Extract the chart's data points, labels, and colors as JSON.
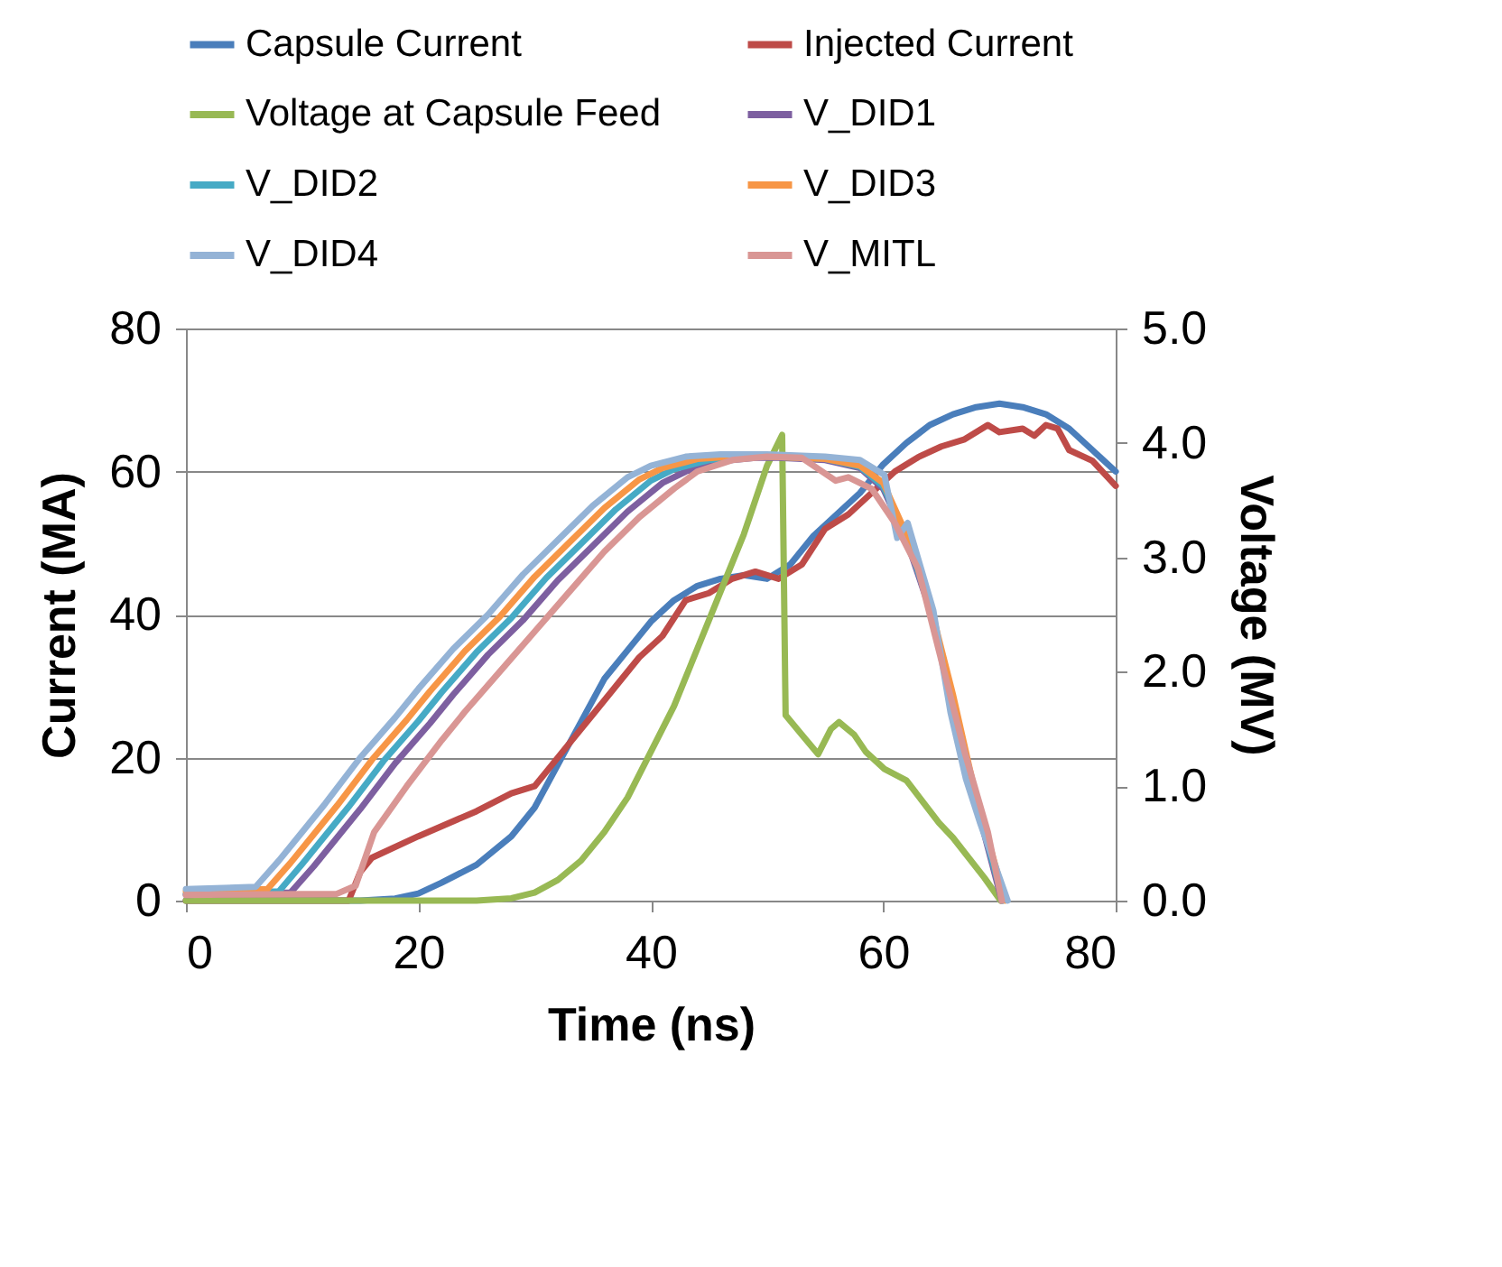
{
  "chart_data": {
    "type": "line",
    "xlabel": "Time (ns)",
    "ylabel": "Current (MA)",
    "y2label": "Voltage (MV)",
    "xlim": [
      0,
      80
    ],
    "xticks": [
      0,
      20,
      40,
      60,
      80
    ],
    "ylim": [
      0,
      80
    ],
    "yticks": [
      0,
      20,
      40,
      60,
      80
    ],
    "y2lim": [
      0,
      5
    ],
    "y2ticks": [
      {
        "value": 0,
        "label": "0.0"
      },
      {
        "value": 1,
        "label": "1.0"
      },
      {
        "value": 2,
        "label": "2.0"
      },
      {
        "value": 3,
        "label": "3.0"
      },
      {
        "value": 4,
        "label": "4.0"
      },
      {
        "value": 5,
        "label": "5.0"
      }
    ],
    "grid": "y",
    "legend": "top",
    "line_style": "solid",
    "marker": "none",
    "series": [
      {
        "name": "Capsule Current",
        "color": "#4a7ebb",
        "x": [
          0,
          15,
          18,
          20,
          22,
          25,
          28,
          30,
          32,
          34,
          36,
          38,
          40,
          42,
          44,
          46,
          48,
          50,
          52,
          54,
          56,
          58,
          60,
          62,
          64,
          66,
          68,
          70,
          72,
          74,
          76,
          78,
          80
        ],
        "values": [
          0,
          0,
          0.3,
          1,
          2.5,
          5,
          9,
          13,
          19,
          25,
          31,
          35,
          39,
          42,
          44,
          45,
          45.5,
          45,
          47,
          51,
          54,
          57,
          61,
          64,
          66.5,
          68,
          69,
          69.5,
          69,
          68,
          66,
          63,
          60
        ]
      },
      {
        "name": "Injected Current",
        "color": "#be4b48",
        "x": [
          0,
          14,
          15,
          16,
          20,
          25,
          28,
          30,
          31,
          33,
          35,
          37,
          39,
          41,
          43,
          45,
          47,
          49,
          51,
          53,
          55,
          57,
          59,
          61,
          63,
          65,
          67,
          69,
          70,
          72,
          73,
          74,
          75,
          76,
          78,
          80
        ],
        "values": [
          0,
          0,
          4,
          6,
          9,
          12.5,
          15,
          16,
          18,
          22,
          26,
          30,
          34,
          37,
          42,
          43,
          45,
          46,
          45,
          47,
          52,
          54,
          57,
          60,
          62,
          63.5,
          64.5,
          66.5,
          65.5,
          66,
          65,
          66.5,
          66,
          63,
          61.5,
          58
        ]
      },
      {
        "name": "Voltage at Capsule Feed",
        "color": "#98b954",
        "axis": "y2",
        "x": [
          0,
          25,
          28,
          30,
          32,
          34,
          36,
          38,
          40,
          42,
          44,
          46,
          48,
          50,
          51.3,
          51.6,
          53,
          54.4,
          55.5,
          56.2,
          57.5,
          58.5,
          60.1,
          62,
          64.8,
          66,
          68.7,
          70.1
        ],
        "values": [
          0,
          0,
          0.02,
          0.07,
          0.18,
          0.35,
          0.6,
          0.9,
          1.3,
          1.7,
          2.2,
          2.7,
          3.2,
          3.8,
          4.07,
          1.62,
          1.45,
          1.28,
          1.5,
          1.56,
          1.45,
          1.3,
          1.15,
          1.05,
          0.68,
          0.55,
          0.2,
          0
        ]
      },
      {
        "name": "V_DID1",
        "color": "#7d5fa0",
        "axis": "y2",
        "x": [
          0,
          9,
          11,
          13,
          15,
          18,
          21,
          23,
          26,
          29,
          32,
          35,
          38,
          41,
          43,
          46,
          49,
          51,
          55,
          58,
          60,
          62,
          64,
          66,
          68,
          70.2
        ],
        "values": [
          0.05,
          0.07,
          0.3,
          0.55,
          0.8,
          1.2,
          1.55,
          1.8,
          2.15,
          2.45,
          2.8,
          3.1,
          3.4,
          3.65,
          3.75,
          3.84,
          3.87,
          3.87,
          3.85,
          3.78,
          3.6,
          3.15,
          2.55,
          1.75,
          0.85,
          0
        ]
      },
      {
        "name": "V_DID2",
        "color": "#46aac5",
        "axis": "y2",
        "x": [
          0,
          8,
          10,
          12,
          14,
          17,
          20,
          22,
          25,
          28,
          31,
          34,
          37,
          40,
          42,
          45,
          48,
          50,
          55,
          58,
          60,
          62,
          64,
          66,
          68,
          70.3
        ],
        "values": [
          0.06,
          0.08,
          0.32,
          0.57,
          0.82,
          1.22,
          1.57,
          1.82,
          2.17,
          2.47,
          2.82,
          3.12,
          3.42,
          3.67,
          3.77,
          3.85,
          3.88,
          3.88,
          3.86,
          3.79,
          3.62,
          3.18,
          2.57,
          1.77,
          0.87,
          0
        ]
      },
      {
        "name": "V_DID3",
        "color": "#f79646",
        "axis": "y2",
        "x": [
          0,
          7,
          9,
          11,
          13,
          16,
          19,
          21,
          24,
          27,
          30,
          33,
          36,
          39,
          41,
          44,
          47,
          50,
          55,
          58,
          60,
          62,
          64,
          66,
          68,
          70.5
        ],
        "values": [
          0.08,
          0.1,
          0.33,
          0.58,
          0.83,
          1.23,
          1.58,
          1.83,
          2.18,
          2.48,
          2.83,
          3.13,
          3.43,
          3.68,
          3.78,
          3.86,
          3.88,
          3.88,
          3.86,
          3.8,
          3.65,
          3.2,
          2.6,
          1.8,
          0.9,
          0
        ]
      },
      {
        "name": "V_DID4",
        "color": "#94b3d6",
        "axis": "y2",
        "x": [
          0,
          6,
          8,
          10,
          12,
          15,
          18,
          20,
          23,
          26,
          29,
          32,
          35,
          38,
          40,
          43,
          46,
          50,
          55,
          58,
          60.1,
          61.2,
          62.1,
          64.3,
          65.8,
          67.1,
          68.3,
          70.7
        ],
        "values": [
          0.1,
          0.12,
          0.35,
          0.6,
          0.85,
          1.25,
          1.6,
          1.85,
          2.2,
          2.5,
          2.85,
          3.15,
          3.45,
          3.7,
          3.8,
          3.88,
          3.9,
          3.9,
          3.88,
          3.85,
          3.72,
          3.17,
          3.3,
          2.54,
          1.64,
          1.07,
          0.69,
          0
        ]
      },
      {
        "name": "V_MITL",
        "color": "#d99694",
        "axis": "y2",
        "x": [
          0,
          13,
          14.6,
          16.2,
          19,
          22,
          24,
          27,
          30,
          33,
          36,
          39,
          42,
          44,
          47,
          50,
          53,
          55.9,
          57,
          59,
          61,
          63,
          65,
          67,
          69,
          70.2
        ],
        "values": [
          0.05,
          0.06,
          0.13,
          0.6,
          1.0,
          1.4,
          1.65,
          2.0,
          2.35,
          2.7,
          3.05,
          3.35,
          3.6,
          3.75,
          3.85,
          3.88,
          3.87,
          3.67,
          3.7,
          3.6,
          3.3,
          2.9,
          2.1,
          1.3,
          0.6,
          0
        ]
      }
    ]
  }
}
